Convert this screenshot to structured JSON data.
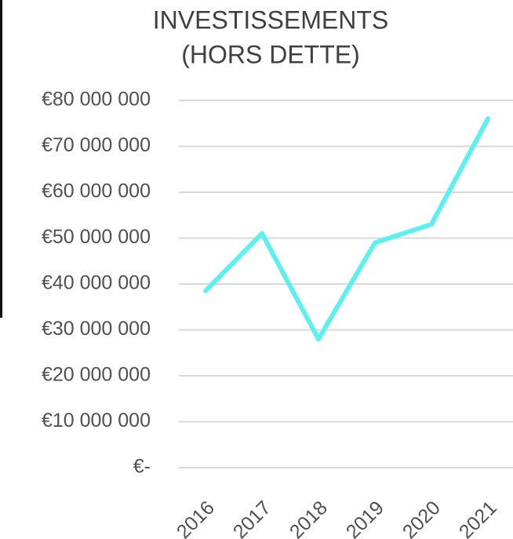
{
  "chart_data": {
    "type": "line",
    "title": [
      "INVESTISSEMENTS",
      "(HORS DETTE)"
    ],
    "categories": [
      "2016",
      "2017",
      "2018",
      "2019",
      "2020",
      "2021"
    ],
    "series": [
      {
        "name": "Investissements",
        "color": "#5cf0ef",
        "values": [
          38500000,
          51000000,
          28000000,
          49000000,
          53000000,
          76000000
        ]
      }
    ],
    "ylim": [
      0,
      80000000
    ],
    "yticks": [
      {
        "value": 0,
        "label": "€-"
      },
      {
        "value": 10000000,
        "label": "€10 000 000"
      },
      {
        "value": 20000000,
        "label": "€20 000 000"
      },
      {
        "value": 30000000,
        "label": "€30 000 000"
      },
      {
        "value": 40000000,
        "label": "€40 000 000"
      },
      {
        "value": 50000000,
        "label": "€50 000 000"
      },
      {
        "value": 60000000,
        "label": "€60 000 000"
      },
      {
        "value": 70000000,
        "label": "€70 000 000"
      },
      {
        "value": 80000000,
        "label": "€80 000 000"
      }
    ],
    "grid": true
  }
}
